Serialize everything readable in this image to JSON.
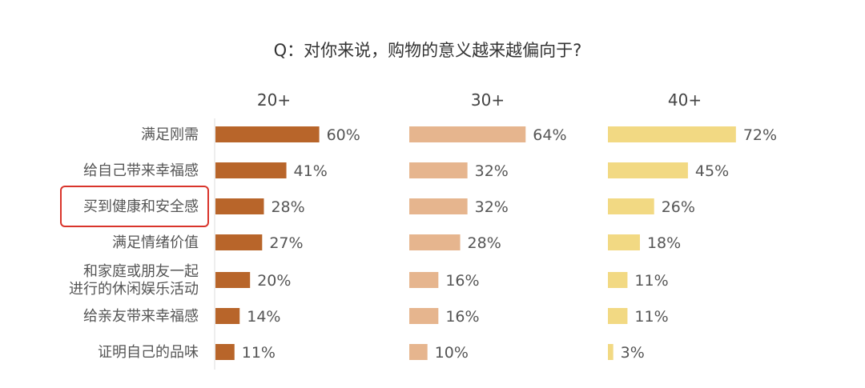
{
  "chart_data": {
    "type": "bar",
    "title": "Q：对你来说，购物的意义越来越偏向于?",
    "categories": [
      "满足刚需",
      "给自己带来幸福感",
      "买到健康和安全感",
      "满足情绪价值",
      "和家庭或朋友一起进行的休闲娱乐活动",
      "给亲友带来幸福感",
      "证明自己的品味"
    ],
    "category_display_lines": [
      [
        "满足刚需"
      ],
      [
        "给自己带来幸福感"
      ],
      [
        "买到健康和安全感"
      ],
      [
        "满足情绪价值"
      ],
      [
        "和家庭或朋友一起",
        "进行的休闲娱乐活动"
      ],
      [
        "给亲友带来幸福感"
      ],
      [
        "证明自己的品味"
      ]
    ],
    "highlighted_category": "买到健康和安全感",
    "highlight_color": "#d9342b",
    "series": [
      {
        "name": "20+",
        "color": "#b8652a",
        "values": [
          60,
          41,
          28,
          27,
          20,
          14,
          11
        ],
        "labels": [
          "60%",
          "41%",
          "28%",
          "27%",
          "20%",
          "14%",
          "11%"
        ]
      },
      {
        "name": "30+",
        "color": "#e6b58e",
        "values": [
          64,
          32,
          32,
          28,
          16,
          16,
          10
        ],
        "labels": [
          "64%",
          "32%",
          "32%",
          "28%",
          "16%",
          "16%",
          "10%"
        ]
      },
      {
        "name": "40+",
        "color": "#f2d983",
        "values": [
          72,
          45,
          26,
          18,
          11,
          11,
          3
        ],
        "labels": [
          "72%",
          "45%",
          "26%",
          "18%",
          "11%",
          "11%",
          "3%"
        ]
      }
    ],
    "value_unit": "%",
    "grid": false,
    "legend": "none"
  }
}
